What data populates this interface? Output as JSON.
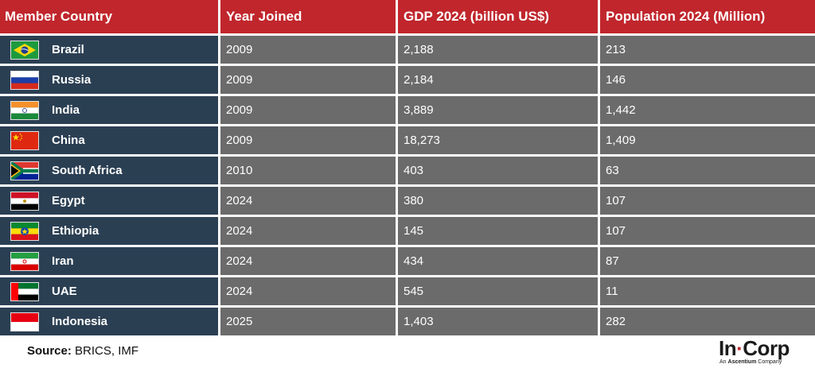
{
  "table": {
    "headers": [
      "Member Country",
      "Year Joined",
      "GDP 2024 (billion US$)",
      "Population 2024 (Million)"
    ],
    "rows": [
      {
        "country": "Brazil",
        "flag": "brazil-flag",
        "year": "2009",
        "gdp": "2,188",
        "population": "213"
      },
      {
        "country": "Russia",
        "flag": "russia-flag",
        "year": "2009",
        "gdp": "2,184",
        "population": "146"
      },
      {
        "country": "India",
        "flag": "india-flag",
        "year": "2009",
        "gdp": "3,889",
        "population": "1,442"
      },
      {
        "country": "China",
        "flag": "china-flag",
        "year": "2009",
        "gdp": "18,273",
        "population": "1,409"
      },
      {
        "country": "South Africa",
        "flag": "south-africa-flag",
        "year": "2010",
        "gdp": "403",
        "population": "63"
      },
      {
        "country": "Egypt",
        "flag": "egypt-flag",
        "year": "2024",
        "gdp": "380",
        "population": "107"
      },
      {
        "country": "Ethiopia",
        "flag": "ethiopia-flag",
        "year": "2024",
        "gdp": "145",
        "population": "107"
      },
      {
        "country": "Iran",
        "flag": "iran-flag",
        "year": "2024",
        "gdp": "434",
        "population": "87"
      },
      {
        "country": "UAE",
        "flag": "uae-flag",
        "year": "2024",
        "gdp": "545",
        "population": "11"
      },
      {
        "country": "Indonesia",
        "flag": "indonesia-flag",
        "year": "2025",
        "gdp": "1,403",
        "population": "282"
      }
    ]
  },
  "source": {
    "label": "Source:",
    "text": " BRICS, IMF"
  },
  "logo": {
    "part1": "In",
    "dot": "·",
    "part2": "Corp",
    "sub_prefix": "An ",
    "sub_brand": "Ascentium",
    "sub_suffix": " Company"
  },
  "colors": {
    "header_bg": "#c0262c",
    "country_bg": "#2b3f53",
    "cell_bg": "#6b6b6b",
    "accent": "#c0262c"
  }
}
